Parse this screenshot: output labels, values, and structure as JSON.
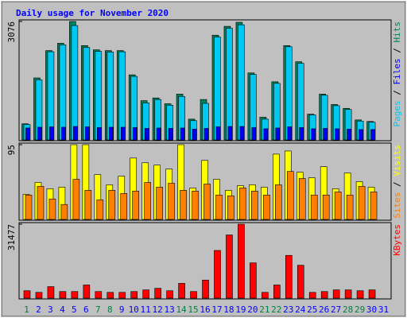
{
  "title": "Daily usage for November 2020",
  "legend_separator": " / ",
  "chart_data": [
    {
      "type": "bar",
      "ylim": [
        0,
        3076
      ],
      "yticks": [
        3076
      ],
      "legend_order": [
        0,
        1,
        2
      ],
      "series": [
        {
          "name": "Pages",
          "color": "#00c8f0",
          "values": [
            400,
            1560,
            2290,
            2470,
            2970,
            2400,
            2300,
            2280,
            2290,
            1650,
            960,
            1050,
            900,
            1130,
            500,
            950,
            2670,
            2900,
            2990,
            1700,
            540,
            1470,
            2420,
            1990,
            650,
            1160,
            890,
            790,
            490,
            460,
            null
          ]
        },
        {
          "name": "Files",
          "color": "#0000ff",
          "values": [
            310,
            330,
            340,
            330,
            350,
            340,
            320,
            330,
            330,
            320,
            300,
            310,
            300,
            310,
            280,
            300,
            340,
            350,
            350,
            320,
            290,
            310,
            340,
            320,
            290,
            300,
            290,
            280,
            270,
            270,
            null
          ]
        },
        {
          "name": "Hits",
          "color": "#00805c",
          "values": [
            420,
            1610,
            2320,
            2510,
            3076,
            2450,
            2340,
            2320,
            2320,
            1690,
            1020,
            1090,
            940,
            1190,
            540,
            1050,
            2720,
            2950,
            3055,
            1740,
            590,
            1510,
            2450,
            2030,
            670,
            1190,
            920,
            820,
            520,
            480,
            null
          ]
        }
      ]
    },
    {
      "type": "bar",
      "ylim": [
        0,
        95
      ],
      "yticks": [
        95
      ],
      "legend_order": [
        0,
        1
      ],
      "series": [
        {
          "name": "Sites",
          "color": "#ff8000",
          "values": [
            31,
            42,
            26,
            19,
            51,
            37,
            25,
            37,
            33,
            36,
            47,
            41,
            46,
            37,
            36,
            45,
            31,
            30,
            40,
            36,
            31,
            44,
            61,
            52,
            31,
            31,
            35,
            31,
            42,
            35,
            null
          ]
        },
        {
          "name": "Visits",
          "color": "#ffff00",
          "values": [
            32,
            47,
            39,
            41,
            95,
            95,
            57,
            44,
            55,
            78,
            72,
            69,
            64,
            95,
            40,
            75,
            51,
            37,
            43,
            44,
            41,
            83,
            87,
            60,
            53,
            67,
            39,
            59,
            48,
            41,
            null
          ]
        }
      ]
    },
    {
      "type": "bar",
      "ylim": [
        0,
        31477
      ],
      "yticks": [
        31477
      ],
      "legend_order": [
        0
      ],
      "categories": [
        "1",
        "2",
        "3",
        "4",
        "5",
        "6",
        "7",
        "8",
        "9",
        "10",
        "11",
        "12",
        "13",
        "14",
        "15",
        "16",
        "17",
        "18",
        "19",
        "20",
        "21",
        "22",
        "23",
        "24",
        "25",
        "26",
        "27",
        "28",
        "29",
        "30",
        "31"
      ],
      "category_colors": [
        "#008040",
        "#0000ff",
        "#0000ff",
        "#0000ff",
        "#0000ff",
        "#0000ff",
        "#008040",
        "#008040",
        "#0000ff",
        "#0000ff",
        "#0000ff",
        "#0000ff",
        "#0000ff",
        "#008040",
        "#008040",
        "#0000ff",
        "#0000ff",
        "#0000ff",
        "#0000ff",
        "#0000ff",
        "#008040",
        "#008040",
        "#0000ff",
        "#0000ff",
        "#0000ff",
        "#0000ff",
        "#0000ff",
        "#008040",
        "#008040",
        "#0000ff",
        "#0000ff"
      ],
      "series": [
        {
          "name": "KBytes",
          "color": "#ff0000",
          "values": [
            3150,
            2450,
            4900,
            2800,
            2800,
            5600,
            2800,
            2450,
            2450,
            2800,
            3500,
            4200,
            3150,
            6300,
            2800,
            7700,
            20300,
            26900,
            31477,
            15000,
            2450,
            5600,
            18200,
            14000,
            2450,
            2800,
            3500,
            3500,
            3150,
            3500,
            null
          ]
        }
      ]
    }
  ]
}
